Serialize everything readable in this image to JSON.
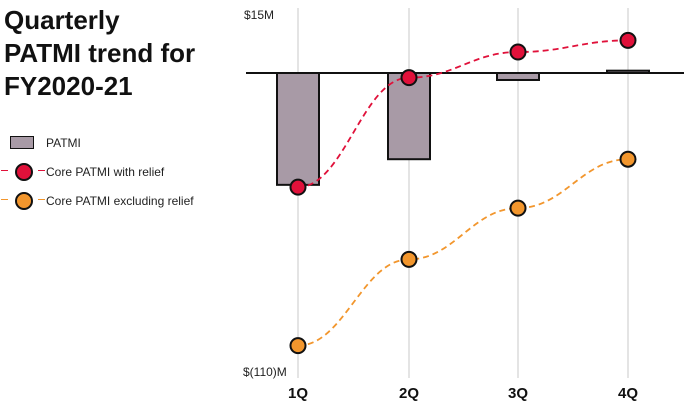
{
  "chart_data": {
    "type": "bar",
    "title": "Quarterly\nPATMI trend for\nFY2020-21",
    "categories": [
      "1Q",
      "2Q",
      "3Q",
      "4Q"
    ],
    "ylim": [
      -110,
      15
    ],
    "y_tick_labels": {
      "top": "$15M",
      "bottom": "$(110)M"
    },
    "grid": "vertical lines at categories",
    "legend_position": "left",
    "series": [
      {
        "name": "PATMI",
        "kind": "bar",
        "values": [
          -48,
          -37,
          -3,
          1
        ],
        "color": "#a89aa6"
      },
      {
        "name": "Core PATMI with relief",
        "kind": "line",
        "style": "dashed",
        "values": [
          -49,
          -2,
          9,
          14
        ],
        "color": "#e0113a"
      },
      {
        "name": "Core PATMI excluding relief",
        "kind": "line",
        "style": "dashed",
        "values": [
          -117,
          -80,
          -58,
          -37
        ],
        "color": "#f2962d"
      }
    ]
  }
}
